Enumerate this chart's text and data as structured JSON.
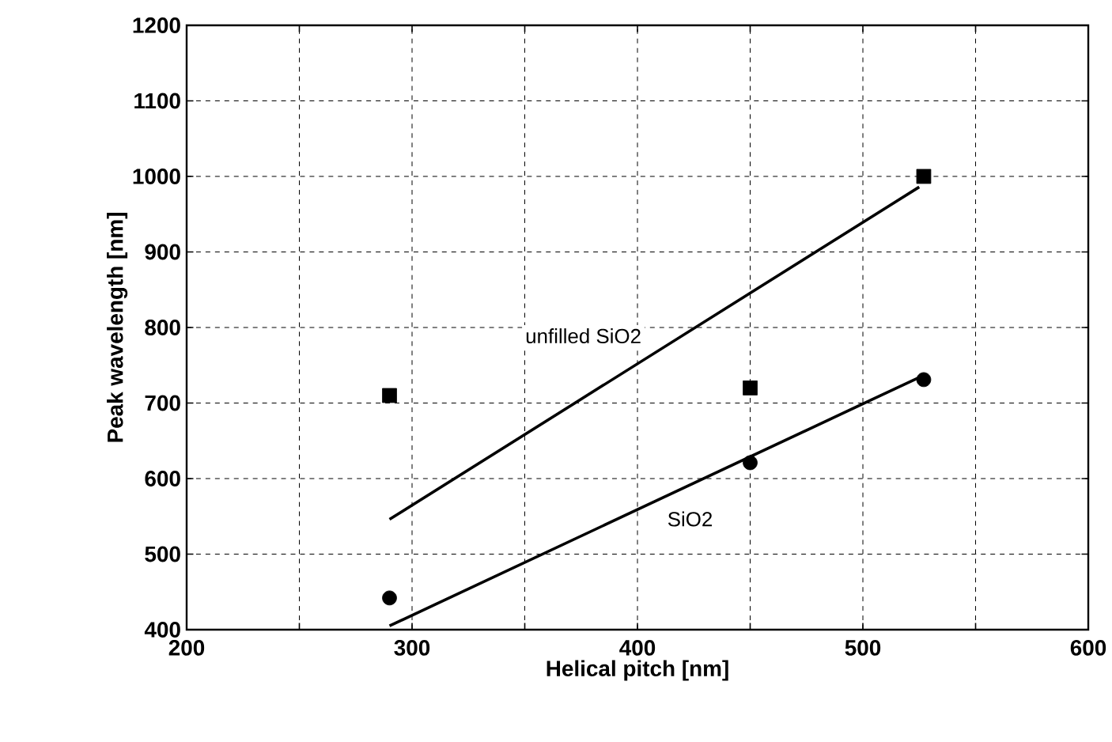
{
  "chart_data": {
    "type": "scatter",
    "xlabel": "Helical pitch [nm]",
    "ylabel": "Peak wavelength [nm]",
    "xlim": [
      200,
      600
    ],
    "ylim": [
      400,
      1200
    ],
    "xticks": [
      200,
      {
        "value": 250,
        "label": null
      },
      300,
      {
        "value": 350,
        "label": null
      },
      400,
      {
        "value": 450,
        "label": null
      },
      500,
      {
        "value": 550,
        "label": null
      },
      600
    ],
    "yticks": [
      400,
      500,
      600,
      700,
      800,
      900,
      1000,
      1100,
      1200
    ],
    "grid": true,
    "series": [
      {
        "marker": "square",
        "color": "#000000",
        "x": [
          290,
          450,
          527
        ],
        "values": [
          710,
          720,
          1000
        ]
      },
      {
        "marker": "circle",
        "color": "#000000",
        "x": [
          290,
          450,
          527
        ],
        "values": [
          442,
          621,
          731
        ]
      },
      {
        "type": "line",
        "name": "unfilled SiO2",
        "color": "#000000",
        "x": [
          290,
          525
        ],
        "values": [
          546,
          986
        ]
      },
      {
        "type": "line",
        "name": "SiO2",
        "color": "#000000",
        "x": [
          290,
          525
        ],
        "values": [
          405,
          734
        ]
      }
    ]
  }
}
